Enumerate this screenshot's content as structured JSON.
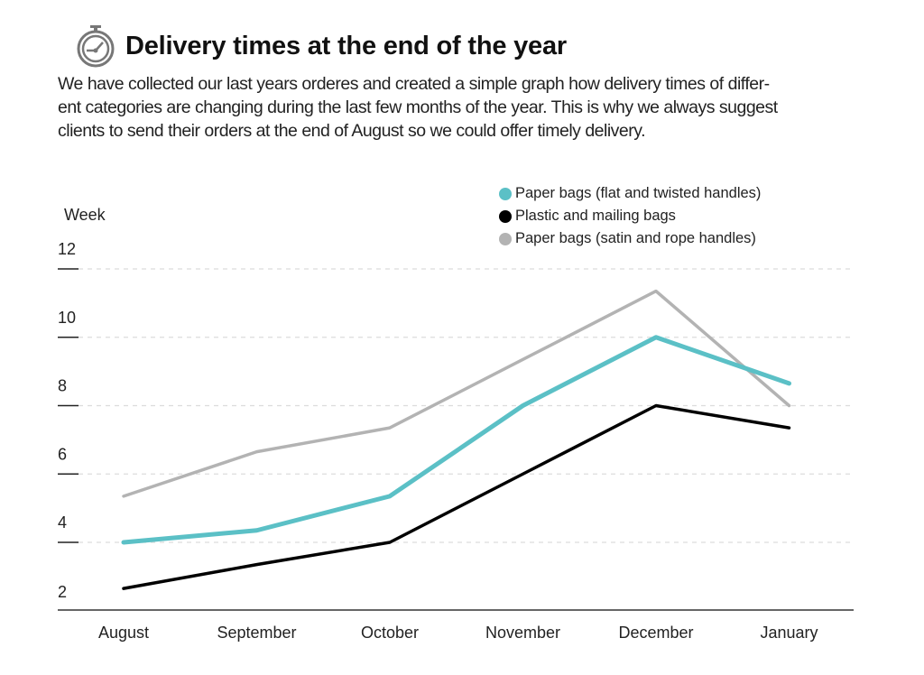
{
  "header": {
    "icon": "stopwatch-icon",
    "title": "Delivery times at the end of the year"
  },
  "description": [
    "We have collected our last years orderes and created a simple graph how delivery times of differ-",
    "ent categories are changing during the last few months of the year. This is why we always suggest",
    "clients to send their orders at the end of August so we could offer timely delivery."
  ],
  "chart_data": {
    "type": "line",
    "title": "Delivery times at the end of the year",
    "xlabel": "",
    "ylabel": "Week",
    "categories": [
      "August",
      "September",
      "October",
      "November",
      "December",
      "January"
    ],
    "yticks": [
      2,
      4,
      6,
      8,
      10,
      12
    ],
    "ylim": [
      2,
      12
    ],
    "grid": "horizontal dashed",
    "legend_position": "top-right",
    "series": [
      {
        "name": "Paper bags (flat and twisted handles)",
        "color": "#5bc0c6",
        "values": [
          4.0,
          4.35,
          5.35,
          8.0,
          10.0,
          8.65
        ]
      },
      {
        "name": "Plastic and mailing bags",
        "color": "#000000",
        "values": [
          2.65,
          3.35,
          4.0,
          6.0,
          8.0,
          7.35
        ]
      },
      {
        "name": "Paper bags (satin and rope handles)",
        "color": "#b3b3b3",
        "values": [
          5.35,
          6.65,
          7.35,
          9.35,
          11.35,
          8.0
        ]
      }
    ]
  }
}
